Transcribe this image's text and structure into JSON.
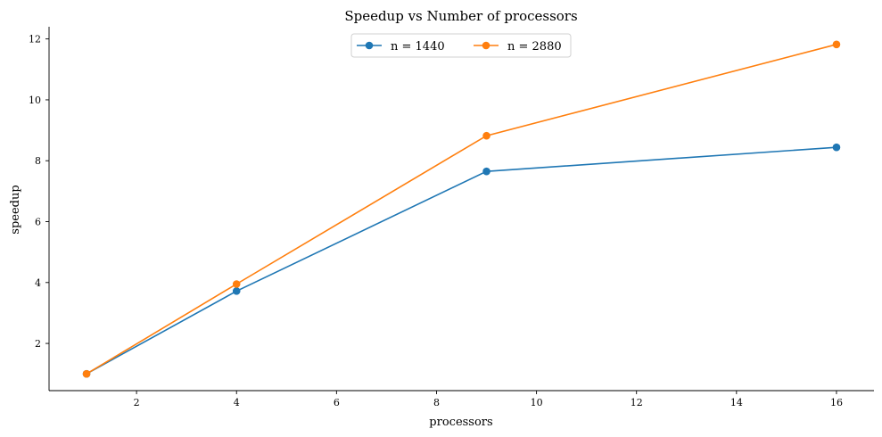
{
  "chart_data": {
    "type": "line",
    "title": "Speedup vs Number of processors",
    "xlabel": "processors",
    "ylabel": "speedup",
    "x": [
      1,
      4,
      9,
      16
    ],
    "xlim": [
      0.25,
      16.75
    ],
    "ylim": [
      0.45,
      12.4
    ],
    "xticks": [
      2,
      4,
      6,
      8,
      10,
      12,
      14,
      16
    ],
    "yticks": [
      2,
      4,
      6,
      8,
      10,
      12
    ],
    "grid": false,
    "legend_position": "top-center",
    "series": [
      {
        "name": "n = 1440",
        "color": "#1f77b4",
        "values": [
          1.0,
          3.72,
          7.65,
          8.44
        ]
      },
      {
        "name": "n = 2880",
        "color": "#ff7f0e",
        "values": [
          1.0,
          3.95,
          8.82,
          11.82
        ]
      }
    ]
  }
}
